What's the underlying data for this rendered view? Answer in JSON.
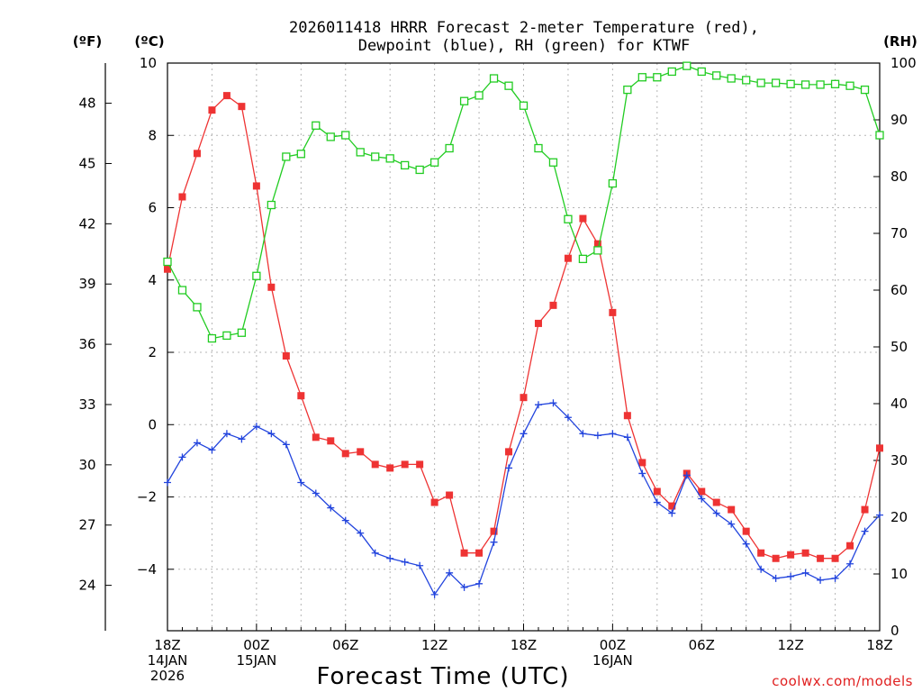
{
  "chart_data": {
    "type": "line",
    "title_lines": [
      "2026011418 HRRR Forecast 2-meter Temperature (red),",
      "Dewpoint (blue), RH (green) for KTWF"
    ],
    "units": {
      "fahrenheit": "(ºF)",
      "celsius": "(ºC)",
      "rh": "(RH)"
    },
    "xlabel": "Forecast Time (UTC)",
    "credit": "coolwx.com/models",
    "x_ticks": [
      {
        "hour": 0,
        "lines": [
          "18Z",
          "14JAN",
          "2026"
        ]
      },
      {
        "hour": 6,
        "lines": [
          "00Z",
          "15JAN"
        ]
      },
      {
        "hour": 12,
        "lines": [
          "06Z"
        ]
      },
      {
        "hour": 18,
        "lines": [
          "12Z"
        ]
      },
      {
        "hour": 24,
        "lines": [
          "18Z"
        ]
      },
      {
        "hour": 30,
        "lines": [
          "00Z",
          "16JAN"
        ]
      },
      {
        "hour": 36,
        "lines": [
          "06Z"
        ]
      },
      {
        "hour": 42,
        "lines": [
          "12Z"
        ]
      },
      {
        "hour": 48,
        "lines": [
          "18Z"
        ]
      }
    ],
    "x_range_hours": [
      0,
      48
    ],
    "celsius_ticks": [
      "10",
      "8",
      "6",
      "4",
      "2",
      "0",
      "−2",
      "−4"
    ],
    "celsius_tick_values": [
      10,
      8,
      6,
      4,
      2,
      0,
      -2,
      -4
    ],
    "celsius_range": [
      -5.7,
      10
    ],
    "fahrenheit_ticks": [
      "48",
      "45",
      "42",
      "39",
      "36",
      "33",
      "30",
      "27",
      "24"
    ],
    "fahrenheit_tick_values": [
      48,
      45,
      42,
      39,
      36,
      33,
      30,
      27,
      24
    ],
    "rh_ticks": [
      "100",
      "90",
      "80",
      "70",
      "60",
      "50",
      "40",
      "30",
      "20",
      "10",
      "0"
    ],
    "rh_tick_values": [
      100,
      90,
      80,
      70,
      60,
      50,
      40,
      30,
      20,
      10,
      0
    ],
    "rh_range": [
      0,
      100
    ],
    "grid": true,
    "series": [
      {
        "name": "Temperature",
        "color": "#ee3333",
        "marker": "filled-square",
        "axis": "celsius",
        "values": [
          4.3,
          6.3,
          7.5,
          8.7,
          9.1,
          8.8,
          6.6,
          3.8,
          1.9,
          0.8,
          -0.35,
          -0.45,
          -0.8,
          -0.75,
          -1.1,
          -1.2,
          -1.1,
          -1.1,
          -2.15,
          -1.95,
          -3.55,
          -3.55,
          -2.95,
          -0.75,
          0.75,
          2.8,
          3.3,
          4.6,
          5.7,
          5.0,
          3.1,
          0.25,
          -1.05,
          -1.85,
          -2.25,
          -1.35,
          -1.85,
          -2.15,
          -2.35,
          -2.95,
          -3.55,
          -3.7,
          -3.6,
          -3.55,
          -3.7,
          -3.7,
          -3.35,
          -2.35,
          -0.65
        ]
      },
      {
        "name": "Dewpoint",
        "color": "#2244dd",
        "marker": "plus",
        "axis": "celsius",
        "values": [
          -1.6,
          -0.9,
          -0.5,
          -0.7,
          -0.25,
          -0.4,
          -0.05,
          -0.25,
          -0.55,
          -1.6,
          -1.9,
          -2.3,
          -2.65,
          -3.0,
          -3.55,
          -3.7,
          -3.8,
          -3.9,
          -4.7,
          -4.1,
          -4.5,
          -4.4,
          -3.25,
          -1.2,
          -0.25,
          0.55,
          0.6,
          0.2,
          -0.25,
          -0.3,
          -0.25,
          -0.35,
          -1.35,
          -2.15,
          -2.45,
          -1.4,
          -2.05,
          -2.45,
          -2.75,
          -3.3,
          -4.0,
          -4.25,
          -4.2,
          -4.1,
          -4.3,
          -4.25,
          -3.85,
          -2.95,
          -2.5
        ]
      },
      {
        "name": "RH",
        "color": "#22cc22",
        "marker": "open-square",
        "axis": "rh",
        "values": [
          65,
          60,
          57,
          51.5,
          52,
          52.5,
          62.5,
          75,
          83.5,
          84,
          89,
          87,
          87.3,
          84.3,
          83.5,
          83.2,
          82,
          81.2,
          82.5,
          85,
          93.3,
          94.3,
          97.3,
          96,
          92.5,
          85,
          82.5,
          72.5,
          65.5,
          67,
          78.8,
          95.3,
          97.5,
          97.5,
          98.5,
          99.5,
          98.5,
          97.8,
          97.3,
          97,
          96.5,
          96.5,
          96.3,
          96.2,
          96.2,
          96.3,
          96,
          95.3,
          87.3
        ]
      }
    ]
  }
}
